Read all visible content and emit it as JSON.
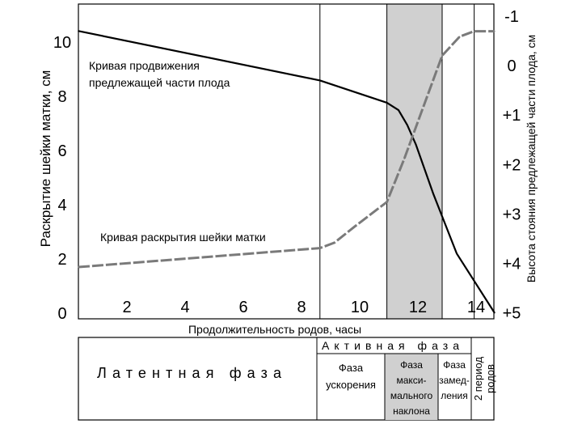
{
  "chart_data": {
    "type": "line",
    "title": "",
    "xlabel": "Продолжительность родов, часы",
    "ylabel_left": "Раскрытие шейки матки, см",
    "ylabel_right": "Высота стояния предлежащей части плода, см",
    "x_range": [
      0,
      14.3
    ],
    "ylim_left": [
      0,
      11
    ],
    "ylim_right": [
      -1,
      5
    ],
    "x_ticks": [
      "2",
      "4",
      "6",
      "8",
      "10",
      "12",
      "14"
    ],
    "y_ticks_left": [
      "0",
      "2",
      "4",
      "6",
      "8",
      "10"
    ],
    "y_ticks_right": [
      "-1",
      "0",
      "+1",
      "+2",
      "+3",
      "+4",
      "+5"
    ],
    "grid": false,
    "shaded_interval": {
      "from": 10.6,
      "to": 12.5,
      "color": "#d0d0d0"
    },
    "phase_boundaries": [
      8.3,
      10.6,
      12.5,
      13.6
    ],
    "series": [
      {
        "name": "Кривая продвижения предлежащей части плода",
        "axis": "right",
        "color": "#000000",
        "points": [
          [
            0,
            -0.7
          ],
          [
            8.3,
            0.3
          ],
          [
            10.6,
            0.75
          ],
          [
            11.0,
            0.9
          ],
          [
            11.3,
            1.2
          ],
          [
            11.6,
            1.6
          ],
          [
            12.2,
            2.6
          ],
          [
            13.0,
            3.8
          ],
          [
            14.3,
            5.0
          ]
        ]
      },
      {
        "name": "Кривая раскрытия шейки матки",
        "axis": "left",
        "color": "#7a7a7a",
        "points": [
          [
            0,
            1.7
          ],
          [
            8.3,
            2.4
          ],
          [
            8.8,
            2.6
          ],
          [
            9.5,
            3.2
          ],
          [
            10.6,
            4.1
          ],
          [
            11.2,
            5.7
          ],
          [
            12.5,
            9.5
          ],
          [
            13.1,
            10.2
          ],
          [
            13.6,
            10.4
          ],
          [
            14.3,
            10.4
          ]
        ]
      }
    ]
  },
  "labels": {
    "curve_descent": [
      "Кривая продвижения",
      "предлежащей части плода"
    ],
    "curve_dilation": "Кривая раскрытия шейки матки"
  },
  "phase_table": {
    "latent": "Латентная фаза",
    "active": "Активная фаза",
    "acceleration": [
      "Фаза",
      "ускорения"
    ],
    "max_slope": [
      "Фаза",
      "макси-",
      "мального",
      "наклона"
    ],
    "deceleration": [
      "Фаза",
      "замед-",
      "ления"
    ],
    "second_stage": [
      "2 период",
      "родов"
    ]
  }
}
